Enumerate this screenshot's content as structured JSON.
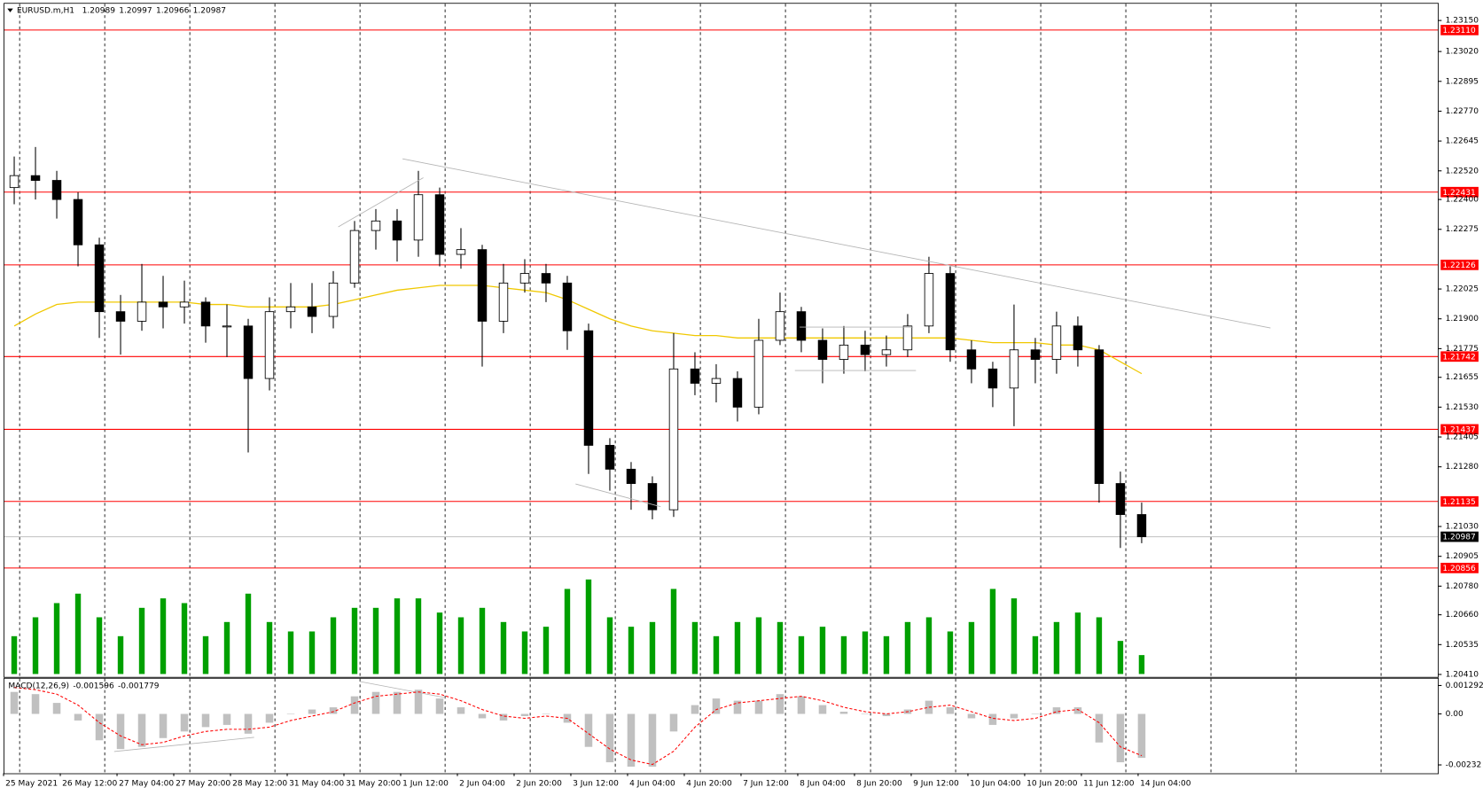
{
  "chart_data": {
    "type": "candlestick",
    "title": "EURUSD.m,H1",
    "header_values": [
      1.20989,
      1.20997,
      1.20966,
      1.20987
    ],
    "xtick_labels": [
      "25 May 2021",
      "26 May 12:00",
      "27 May 04:00",
      "27 May 20:00",
      "28 May 12:00",
      "31 May 04:00",
      "31 May 20:00",
      "1 Jun 12:00",
      "2 Jun 04:00",
      "2 Jun 20:00",
      "3 Jun 12:00",
      "4 Jun 04:00",
      "4 Jun 20:00",
      "7 Jun 12:00",
      "8 Jun 04:00",
      "8 Jun 20:00",
      "9 Jun 12:00",
      "10 Jun 04:00",
      "10 Jun 20:00",
      "11 Jun 12:00",
      "14 Jun 04:00"
    ],
    "open": [
      1.2245,
      1.225,
      1.2248,
      1.224,
      1.2221,
      1.2193,
      1.2189,
      1.2197,
      1.2195,
      1.2197,
      1.2187,
      1.2187,
      1.2165,
      1.2193,
      1.2195,
      1.2191,
      1.2205,
      1.2227,
      1.2231,
      1.2223,
      1.2242,
      1.2217,
      1.2219,
      1.2189,
      1.2205,
      1.2209,
      1.2205,
      1.2185,
      1.2137,
      1.2127,
      1.2121,
      1.211,
      1.2169,
      1.2163,
      1.2165,
      1.2153,
      1.2181,
      1.2193,
      1.2181,
      1.2173,
      1.2179,
      1.2175,
      1.2177,
      1.2187,
      1.2209,
      1.2177,
      1.2169,
      1.2161,
      1.2177,
      1.2173,
      1.2187,
      1.2177,
      1.2121,
      1.2108
    ],
    "high": [
      1.2258,
      1.2262,
      1.2252,
      1.2243,
      1.2224,
      1.22,
      1.2213,
      1.2208,
      1.2206,
      1.2199,
      1.2196,
      1.219,
      1.2199,
      1.2205,
      1.2205,
      1.221,
      1.2231,
      1.2236,
      1.2236,
      1.2252,
      1.2245,
      1.2228,
      1.2221,
      1.2213,
      1.2215,
      1.2213,
      1.2208,
      1.2188,
      1.214,
      1.213,
      1.2124,
      1.2184,
      1.2176,
      1.2171,
      1.2168,
      1.219,
      1.2201,
      1.2195,
      1.2186,
      1.2187,
      1.2185,
      1.2183,
      1.2192,
      1.2216,
      1.2212,
      1.2181,
      1.2172,
      1.2196,
      1.2182,
      1.2193,
      1.2191,
      1.2179,
      1.2126,
      1.2113
    ],
    "low": [
      1.2238,
      1.224,
      1.2232,
      1.2212,
      1.2182,
      1.2175,
      1.2185,
      1.2186,
      1.2188,
      1.218,
      1.2174,
      1.2134,
      1.216,
      1.2186,
      1.2184,
      1.2186,
      1.2203,
      1.2219,
      1.2214,
      1.2216,
      1.2212,
      1.2211,
      1.217,
      1.2184,
      1.2201,
      1.2197,
      1.2177,
      1.2125,
      1.2118,
      1.211,
      1.2106,
      1.2107,
      1.2158,
      1.2155,
      1.2147,
      1.215,
      1.2179,
      1.2176,
      1.2163,
      1.2167,
      1.2168,
      1.217,
      1.2174,
      1.2184,
      1.2172,
      1.2163,
      1.2153,
      1.2145,
      1.2163,
      1.2167,
      1.217,
      1.2113,
      1.2094,
      1.2096
    ],
    "close": [
      1.225,
      1.2248,
      1.224,
      1.2221,
      1.2193,
      1.2189,
      1.2197,
      1.2195,
      1.2197,
      1.2187,
      1.2187,
      1.2165,
      1.2193,
      1.2195,
      1.2191,
      1.2205,
      1.2227,
      1.2231,
      1.2223,
      1.2242,
      1.2217,
      1.2219,
      1.2189,
      1.2205,
      1.2209,
      1.2205,
      1.2185,
      1.2137,
      1.2127,
      1.2121,
      1.211,
      1.2169,
      1.2163,
      1.2165,
      1.2153,
      1.2181,
      1.2193,
      1.2181,
      1.2173,
      1.2179,
      1.2175,
      1.2177,
      1.2187,
      1.2209,
      1.2177,
      1.2169,
      1.2161,
      1.2177,
      1.2173,
      1.2187,
      1.2177,
      1.2121,
      1.2108,
      1.20987
    ],
    "ma": {
      "color": "#f0c800",
      "values": [
        1.2187,
        1.2192,
        1.2196,
        1.2197,
        1.2197,
        1.2197,
        1.2197,
        1.2197,
        1.2197,
        1.2196,
        1.2196,
        1.2195,
        1.2195,
        1.2195,
        1.2195,
        1.2196,
        1.2198,
        1.22,
        1.2202,
        1.2203,
        1.2204,
        1.2204,
        1.2204,
        1.2203,
        1.2202,
        1.2201,
        1.2198,
        1.2194,
        1.219,
        1.2187,
        1.2185,
        1.2184,
        1.2183,
        1.2183,
        1.2182,
        1.2182,
        1.2182,
        1.2182,
        1.2182,
        1.2182,
        1.2182,
        1.2182,
        1.2182,
        1.2182,
        1.2182,
        1.2181,
        1.218,
        1.218,
        1.218,
        1.2179,
        1.2179,
        1.2177,
        1.2172,
        1.2167
      ]
    },
    "volumes": {
      "color": "#00a000",
      "values": [
        40,
        60,
        75,
        85,
        60,
        40,
        70,
        80,
        75,
        40,
        55,
        85,
        55,
        45,
        45,
        60,
        70,
        70,
        80,
        80,
        65,
        60,
        70,
        55,
        45,
        50,
        90,
        100,
        60,
        50,
        55,
        90,
        55,
        40,
        55,
        60,
        55,
        40,
        50,
        40,
        45,
        40,
        55,
        60,
        45,
        55,
        90,
        80,
        40,
        55,
        65,
        60,
        35,
        20
      ]
    },
    "levels": {
      "color": "#ff0000",
      "values": [
        {
          "value": 1.2311,
          "label": "1.23110"
        },
        1.22431,
        1.22126,
        1.21742,
        1.21437,
        1.21135,
        1.20856
      ]
    },
    "current_price": 1.20987,
    "ylim": [
      1.204,
      1.2322
    ],
    "yticks": [
      {
        "value": 1.2315,
        "label": "1.23150"
      },
      {
        "value": 1.2302,
        "label": "1.23020"
      },
      1.22895,
      {
        "value": 1.2277,
        "label": "1.22770"
      },
      1.22645,
      {
        "value": 1.2252,
        "label": "1.22520"
      },
      {
        "value": 1.224,
        "label": "1.22400"
      },
      1.22275,
      1.22025,
      {
        "value": 1.219,
        "label": "1.21900"
      },
      1.21775,
      1.21655,
      {
        "value": 1.2153,
        "label": "1.21530"
      },
      1.21405,
      {
        "value": 1.2128,
        "label": "1.21280"
      },
      {
        "value": 1.2103,
        "label": "1.21030"
      },
      1.20905,
      {
        "value": 1.2078,
        "label": "1.20780"
      },
      {
        "value": 1.2066,
        "label": "1.20660"
      },
      1.20535,
      {
        "value": 1.2041,
        "label": "1.20410"
      }
    ],
    "grid": true,
    "macd": {
      "label": "MACD(12,26,9)",
      "readings": [
        -0.001596,
        -0.001779
      ],
      "histogram": {
        "color": "#c0c0c0",
        "values": [
          0.001,
          0.0009,
          0.0005,
          -0.0003,
          -0.0012,
          -0.0016,
          -0.0015,
          -0.0011,
          -0.0008,
          -0.0006,
          -0.0005,
          -0.0009,
          -0.0004,
          0.0,
          0.0002,
          0.0003,
          0.0008,
          0.001,
          0.001,
          0.0011,
          0.0007,
          0.0003,
          -0.0002,
          -0.0003,
          -0.0001,
          0.0,
          -0.0004,
          -0.0015,
          -0.0022,
          -0.0024,
          -0.0024,
          -0.0008,
          0.0004,
          0.0007,
          0.0006,
          0.0006,
          0.0009,
          0.0008,
          0.0004,
          0.0001,
          0.0,
          -0.0001,
          0.0002,
          0.0006,
          0.0003,
          -0.0002,
          -0.0005,
          -0.0002,
          0.0,
          0.0003,
          0.0003,
          -0.0013,
          -0.0022,
          -0.002
        ]
      },
      "signal": {
        "color": "#ff0000",
        "values": [
          0.0012,
          0.0011,
          0.0009,
          0.0004,
          -0.0004,
          -0.001,
          -0.0014,
          -0.0013,
          -0.001,
          -0.0008,
          -0.0007,
          -0.0007,
          -0.0006,
          -0.0003,
          -0.0001,
          0.0001,
          0.0005,
          0.0008,
          0.0009,
          0.001,
          0.0009,
          0.0006,
          0.0002,
          -0.0001,
          -0.0002,
          -0.0001,
          -0.0002,
          -0.0009,
          -0.0016,
          -0.0021,
          -0.0023,
          -0.0017,
          -0.0006,
          0.0002,
          0.0005,
          0.0006,
          0.0007,
          0.0008,
          0.0006,
          0.0003,
          0.0001,
          0.0,
          0.0001,
          0.0003,
          0.0004,
          0.0001,
          -0.0002,
          -0.0003,
          -0.0002,
          0.0001,
          0.0002,
          -0.0004,
          -0.0015,
          -0.0019
        ]
      },
      "ylim": [
        -0.0027,
        0.0016
      ],
      "yticks": [
        0.001292,
        {
          "value": 0,
          "label": "0.00"
        },
        -0.00232
      ]
    }
  }
}
